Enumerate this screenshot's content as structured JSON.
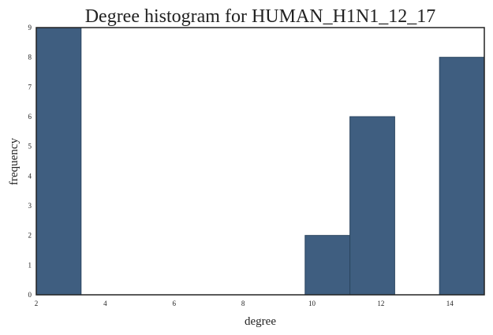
{
  "chart_data": {
    "type": "bar",
    "title": "Degree histogram for HUMAN_H1N1_12_17",
    "xlabel": "degree",
    "ylabel": "frequency",
    "xlim": [
      2,
      15
    ],
    "ylim": [
      0,
      9
    ],
    "grid": false,
    "bar_color": "#3f5e80",
    "edge_color": "#2b4560",
    "bins": [
      {
        "x0": 2.0,
        "x1": 3.3,
        "value": 9
      },
      {
        "x0": 3.3,
        "x1": 4.6,
        "value": 0
      },
      {
        "x0": 4.6,
        "x1": 5.9,
        "value": 0
      },
      {
        "x0": 5.9,
        "x1": 7.2,
        "value": 0
      },
      {
        "x0": 7.2,
        "x1": 8.5,
        "value": 0
      },
      {
        "x0": 8.5,
        "x1": 9.8,
        "value": 0
      },
      {
        "x0": 9.8,
        "x1": 11.1,
        "value": 2
      },
      {
        "x0": 11.1,
        "x1": 12.4,
        "value": 6
      },
      {
        "x0": 12.4,
        "x1": 13.7,
        "value": 0
      },
      {
        "x0": 13.7,
        "x1": 15.0,
        "value": 8
      }
    ],
    "x_ticks": [
      "2",
      "4",
      "6",
      "8",
      "10",
      "12",
      "14"
    ],
    "y_ticks": [
      "0",
      "1",
      "2",
      "3",
      "4",
      "5",
      "6",
      "7",
      "8",
      "9"
    ]
  }
}
